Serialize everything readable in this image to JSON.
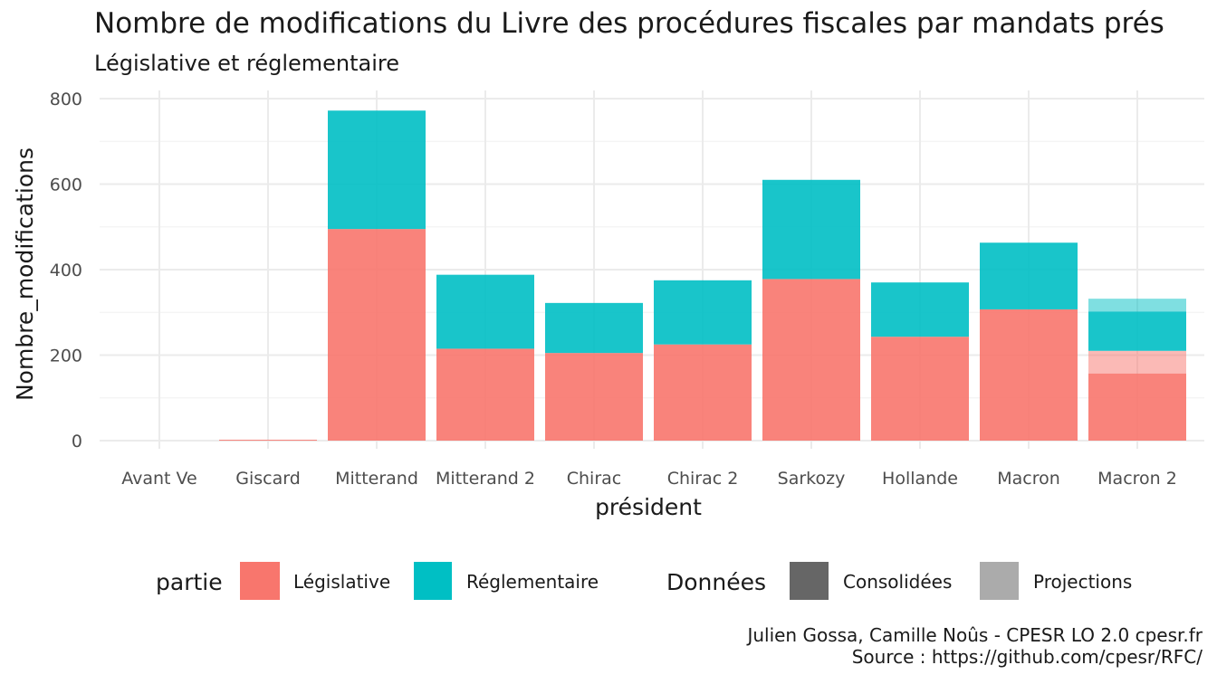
{
  "chart_data": {
    "type": "bar",
    "stacked": true,
    "title": "Nombre de modifications du Livre des procédures fiscales par mandats prés",
    "subtitle": "Législative et réglementaire",
    "xlabel": "président",
    "ylabel": "Nombre_modifications",
    "ylim": [
      0,
      800
    ],
    "yticks": [
      0,
      200,
      400,
      600,
      800
    ],
    "grid": true,
    "categories": [
      "Avant Ve",
      "Giscard",
      "Mitterand",
      "Mitterand 2",
      "Chirac",
      "Chirac 2",
      "Sarkozy",
      "Hollande",
      "Macron",
      "Macron 2"
    ],
    "series": [
      {
        "name": "Législative",
        "partie": "Législative",
        "donnees": "Consolidées",
        "color": "#F8766D",
        "values": [
          0,
          2,
          495,
          215,
          205,
          225,
          378,
          243,
          307,
          157
        ]
      },
      {
        "name": "Législative",
        "partie": "Législative",
        "donnees": "Projections",
        "color": "#F8766D",
        "values": [
          0,
          0,
          0,
          0,
          0,
          0,
          0,
          0,
          0,
          53
        ]
      },
      {
        "name": "Réglementaire",
        "partie": "Réglementaire",
        "donnees": "Consolidées",
        "color": "#00BFC4",
        "values": [
          0,
          0,
          277,
          173,
          117,
          150,
          232,
          127,
          156,
          92
        ]
      },
      {
        "name": "Réglementaire",
        "partie": "Réglementaire",
        "donnees": "Projections",
        "color": "#00BFC4",
        "values": [
          0,
          0,
          0,
          0,
          0,
          0,
          0,
          0,
          0,
          30
        ]
      }
    ],
    "legend": {
      "placement": "bottom",
      "groups": [
        {
          "title": "partie",
          "items": [
            {
              "label": "Législative",
              "color": "#F8766D"
            },
            {
              "label": "Réglementaire",
              "color": "#00BFC4"
            }
          ]
        },
        {
          "title": "Données",
          "items": [
            {
              "label": "Consolidées",
              "color": "#666666"
            },
            {
              "label": "Projections",
              "color": "#ababab"
            }
          ]
        }
      ]
    },
    "caption": [
      "Julien Gossa, Camille Noûs - CPESR LO 2.0 cpesr.fr",
      "Source : https://github.com/cpesr/RFC/"
    ]
  }
}
